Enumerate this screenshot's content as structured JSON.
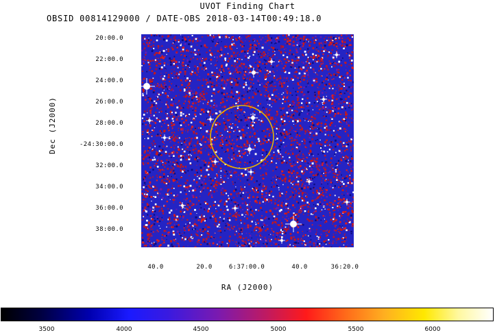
{
  "header": {
    "title": "UVOT Finding Chart",
    "subtitle": "OBSID 00814129000 / DATE-OBS 2018-03-14T00:49:18.0"
  },
  "axes": {
    "xlabel": "RA (J2000)",
    "ylabel": "Dec (J2000)",
    "dec_ticks": [
      "20:00.0",
      "22:00.0",
      "24:00.0",
      "26:00.0",
      "28:00.0",
      "-24:30:00.0",
      "32:00.0",
      "34:00.0",
      "36:00.0",
      "38:00.0"
    ],
    "ra_ticks": [
      "40.0",
      "20.0",
      "6:37:00.0",
      "40.0",
      "36:20.0"
    ]
  },
  "colorbar": {
    "ticks": [
      "3500",
      "4000",
      "4500",
      "5000",
      "5500",
      "6000"
    ]
  },
  "colors": {
    "source_circle": "#e8b400",
    "sky_background": "#2020c0",
    "noise_red": "#d01010",
    "stars": "#ffffff"
  }
}
